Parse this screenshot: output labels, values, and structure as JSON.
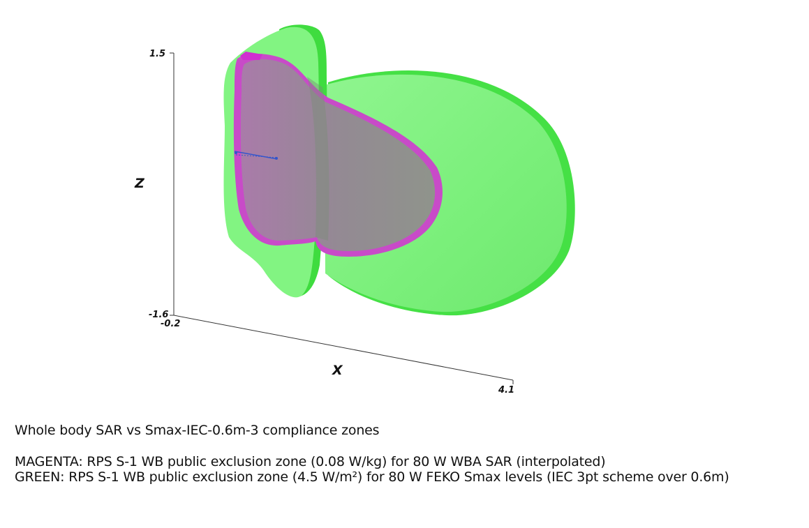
{
  "axes": {
    "z_label": "Z",
    "x_label": "X",
    "z_max_tick": "1.5",
    "z_min_tick": "-1.6",
    "x_min_tick": "-0.2",
    "x_max_tick": "4.1"
  },
  "legend": {
    "title": "Whole body SAR vs Smax-IEC-0.6m-3 compliance zones",
    "magenta": "MAGENTA: RPS S-1 WB public exclusion zone (0.08 W/kg) for 80 W WBA SAR (interpolated)",
    "green": "GREEN: RPS S-1 WB public exclusion zone (4.5 W/m²) for 80 W FEKO Smax levels (IEC 3pt scheme over 0.6m)"
  },
  "colors": {
    "green_zone": "#7ff27f",
    "green_edge": "#3fdc3f",
    "magenta_zone": "#d23fd2",
    "antenna": "#3355cc",
    "axis": "#333333"
  }
}
